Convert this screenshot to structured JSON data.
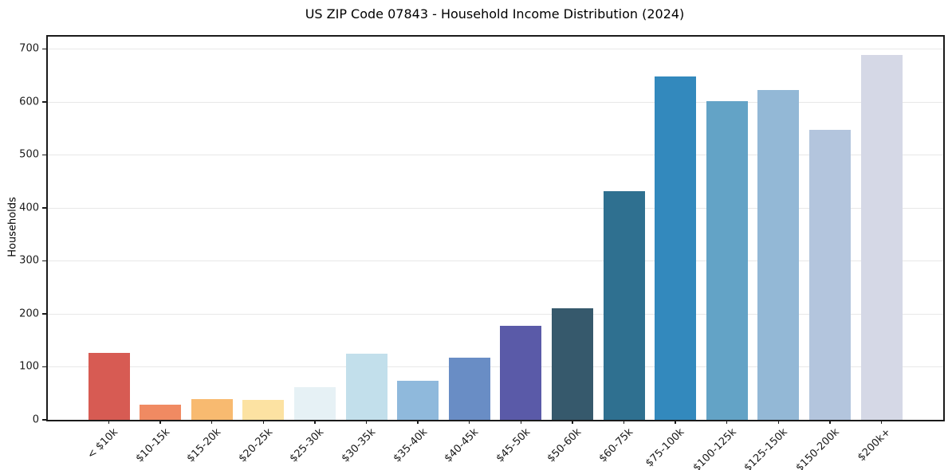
{
  "chart": {
    "title": "US ZIP Code 07843 - Household Income Distribution (2024)",
    "ylabel": "Households"
  },
  "chart_data": {
    "type": "bar",
    "title": "US ZIP Code 07843 - Household Income Distribution (2024)",
    "xlabel": "",
    "ylabel": "Households",
    "categories": [
      "< $10k",
      "$10-15k",
      "$15-20k",
      "$20-25k",
      "$25-30k",
      "$30-35k",
      "$35-40k",
      "$40-45k",
      "$45-50k",
      "$50-60k",
      "$60-75k",
      "$75-100k",
      "$100-125k",
      "$125-150k",
      "$150-200k",
      "$200k+"
    ],
    "values": [
      126,
      28,
      39,
      38,
      62,
      125,
      73,
      117,
      178,
      210,
      431,
      648,
      602,
      622,
      547,
      688
    ],
    "bar_colors": [
      "#d75b53",
      "#f08a62",
      "#f8ba70",
      "#fce2a2",
      "#e6f1f5",
      "#c2dfeb",
      "#8fb9dc",
      "#698dc5",
      "#5a5aa8",
      "#36596c",
      "#2f7090",
      "#3389bd",
      "#63a3c6",
      "#93b8d6",
      "#b3c5dd",
      "#d5d8e6"
    ],
    "yticks": [
      0,
      100,
      200,
      300,
      400,
      500,
      600,
      700
    ],
    "ylim": [
      0,
      723
    ],
    "grid": true,
    "grid_color": "#e8e8e8",
    "legend_position": "none",
    "text_color": "#1a1a1a"
  }
}
